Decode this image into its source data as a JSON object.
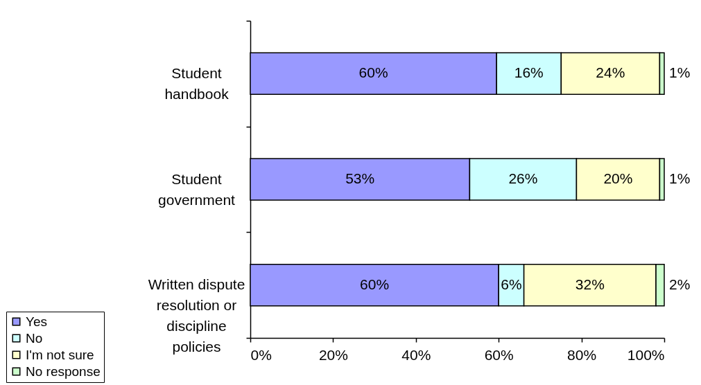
{
  "chart_data": {
    "type": "bar",
    "orientation": "horizontal",
    "stacked": true,
    "categories": [
      "Student handbook",
      "Student government",
      "Written dispute resolution or discipline policies"
    ],
    "series": [
      {
        "name": "Yes",
        "color": "#9999ff",
        "values": [
          59.5,
          53.0,
          60.0
        ],
        "value_labels": [
          "60%",
          "53%",
          "60%"
        ]
      },
      {
        "name": "No",
        "color": "#ccffff",
        "values": [
          15.6,
          25.8,
          6.1
        ],
        "value_labels": [
          "16%",
          "26%",
          "6%"
        ]
      },
      {
        "name": "I'm not sure",
        "color": "#ffffcc",
        "values": [
          23.8,
          20.1,
          31.9
        ],
        "value_labels": [
          "24%",
          "20%",
          "32%"
        ]
      },
      {
        "name": "No response",
        "color": "#ccffcc",
        "values": [
          1.1,
          1.1,
          2.0
        ],
        "value_labels": [
          "1%",
          "1%",
          "2%"
        ]
      }
    ],
    "xlim": [
      0,
      100
    ],
    "xticks": [
      {
        "value": 0,
        "label": "0%"
      },
      {
        "value": 20,
        "label": "20%"
      },
      {
        "value": 40,
        "label": "40%"
      },
      {
        "value": 60,
        "label": "60%"
      },
      {
        "value": 80,
        "label": "80%"
      },
      {
        "value": 100,
        "label": "100%"
      }
    ],
    "legend": "bottom left"
  }
}
